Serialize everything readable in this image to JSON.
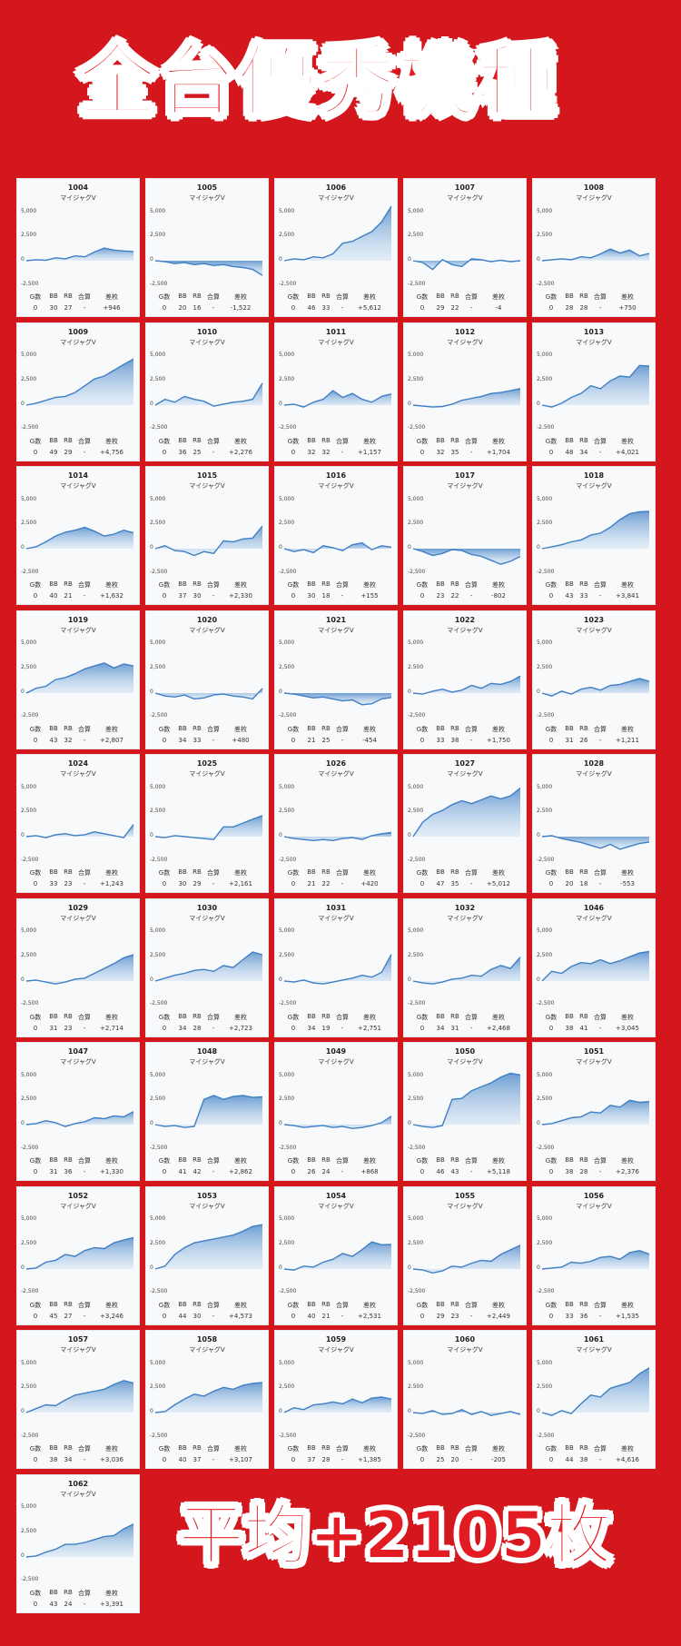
{
  "header": {
    "title": "全台優秀機種"
  },
  "footer": {
    "average": "平均+2105枚"
  },
  "labels": {
    "g": "G数",
    "bb": "BB",
    "rb": "RB",
    "total": "合算",
    "diff": "差枚",
    "y5000": "5,000",
    "y2500": "2,500",
    "y0": "0",
    "yneg": "-2,500"
  },
  "colors": {
    "background": "#d4161d",
    "line": "#3f7fc4",
    "fill": "#a9c9ea",
    "card": "#f7f9fb"
  },
  "machines": [
    {
      "id": "1004",
      "model": "マイジャグV",
      "g": "0",
      "bb": "30",
      "rb": "27",
      "total": "-",
      "diff": "+946",
      "end": 946,
      "shape": [
        0,
        100,
        50,
        300,
        200,
        500,
        400,
        900,
        1300,
        1100,
        1000,
        950
      ]
    },
    {
      "id": "1005",
      "model": "マイジャグV",
      "g": "0",
      "bb": "20",
      "rb": "16",
      "total": "-",
      "diff": "-1,522",
      "end": -1522,
      "shape": [
        0,
        -100,
        -300,
        -200,
        -400,
        -300,
        -500,
        -400,
        -600,
        -700,
        -900,
        -1522
      ]
    },
    {
      "id": "1006",
      "model": "マイジャグV",
      "g": "0",
      "bb": "46",
      "rb": "33",
      "total": "-",
      "diff": "+5,612",
      "end": 5612,
      "shape": [
        0,
        200,
        100,
        400,
        300,
        700,
        1800,
        2000,
        2500,
        3000,
        4000,
        5612
      ]
    },
    {
      "id": "1007",
      "model": "マイジャグV",
      "g": "0",
      "bb": "29",
      "rb": "22",
      "total": "-",
      "diff": "-4",
      "end": -4,
      "shape": [
        0,
        -200,
        -900,
        100,
        -400,
        -600,
        200,
        100,
        -100,
        50,
        -100,
        -4
      ]
    },
    {
      "id": "1008",
      "model": "マイジャグV",
      "g": "0",
      "bb": "28",
      "rb": "28",
      "total": "-",
      "diff": "+750",
      "end": 750,
      "shape": [
        0,
        100,
        200,
        100,
        400,
        300,
        700,
        1200,
        800,
        1100,
        500,
        750
      ]
    },
    {
      "id": "1009",
      "model": "マイジャグV",
      "g": "0",
      "bb": "49",
      "rb": "29",
      "total": "-",
      "diff": "+4,756",
      "end": 4756,
      "shape": [
        0,
        200,
        500,
        800,
        900,
        1300,
        2000,
        2700,
        3000,
        3600,
        4200,
        4756
      ]
    },
    {
      "id": "1010",
      "model": "マイジャグV",
      "g": "0",
      "bb": "36",
      "rb": "25",
      "total": "-",
      "diff": "+2,276",
      "end": 2276,
      "shape": [
        0,
        600,
        300,
        900,
        600,
        400,
        -100,
        100,
        300,
        400,
        600,
        2276
      ]
    },
    {
      "id": "1011",
      "model": "マイジャグV",
      "g": "0",
      "bb": "32",
      "rb": "32",
      "total": "-",
      "diff": "+1,157",
      "end": 1157,
      "shape": [
        0,
        100,
        -200,
        300,
        600,
        1500,
        800,
        1200,
        600,
        300,
        900,
        1157
      ]
    },
    {
      "id": "1012",
      "model": "マイジャグV",
      "g": "0",
      "bb": "32",
      "rb": "35",
      "total": "-",
      "diff": "+1,704",
      "end": 1704,
      "shape": [
        0,
        -100,
        -200,
        -150,
        100,
        500,
        700,
        900,
        1200,
        1300,
        1500,
        1704
      ]
    },
    {
      "id": "1013",
      "model": "マイジャグV",
      "g": "0",
      "bb": "48",
      "rb": "34",
      "total": "-",
      "diff": "+4,021",
      "end": 4021,
      "shape": [
        0,
        -200,
        200,
        800,
        1200,
        2000,
        1700,
        2500,
        3000,
        2900,
        4100,
        4021
      ]
    },
    {
      "id": "1014",
      "model": "マイジャグV",
      "g": "0",
      "bb": "40",
      "rb": "21",
      "total": "-",
      "diff": "+1,632",
      "end": 1632,
      "shape": [
        0,
        200,
        700,
        1300,
        1700,
        1900,
        2200,
        1800,
        1300,
        1500,
        1900,
        1632
      ]
    },
    {
      "id": "1015",
      "model": "マイジャグV",
      "g": "0",
      "bb": "37",
      "rb": "30",
      "total": "-",
      "diff": "+2,330",
      "end": 2330,
      "shape": [
        0,
        300,
        -200,
        -300,
        -700,
        -300,
        -500,
        800,
        700,
        1000,
        1100,
        2330
      ]
    },
    {
      "id": "1016",
      "model": "マイジャグV",
      "g": "0",
      "bb": "30",
      "rb": "18",
      "total": "-",
      "diff": "+155",
      "end": 155,
      "shape": [
        0,
        -300,
        -100,
        -400,
        300,
        100,
        -200,
        400,
        600,
        -100,
        300,
        155
      ]
    },
    {
      "id": "1017",
      "model": "マイジャグV",
      "g": "0",
      "bb": "23",
      "rb": "22",
      "total": "-",
      "diff": "-802",
      "end": -802,
      "shape": [
        0,
        -300,
        -700,
        -500,
        -100,
        -200,
        -600,
        -800,
        -1200,
        -1600,
        -1300,
        -802
      ]
    },
    {
      "id": "1018",
      "model": "マイジャグV",
      "g": "0",
      "bb": "43",
      "rb": "33",
      "total": "-",
      "diff": "+3,841",
      "end": 3841,
      "shape": [
        0,
        200,
        400,
        700,
        900,
        1400,
        1600,
        2200,
        3000,
        3600,
        3800,
        3841
      ]
    },
    {
      "id": "1019",
      "model": "マイジャグV",
      "g": "0",
      "bb": "43",
      "rb": "32",
      "total": "-",
      "diff": "+2,807",
      "end": 2807,
      "shape": [
        0,
        500,
        700,
        1400,
        1600,
        2000,
        2500,
        2800,
        3100,
        2600,
        3000,
        2807
      ]
    },
    {
      "id": "1020",
      "model": "マイジャグV",
      "g": "0",
      "bb": "34",
      "rb": "33",
      "total": "-",
      "diff": "+480",
      "end": 480,
      "shape": [
        0,
        -300,
        -400,
        -200,
        -600,
        -500,
        -200,
        -100,
        -300,
        -400,
        -600,
        480
      ]
    },
    {
      "id": "1021",
      "model": "マイジャグV",
      "g": "0",
      "bb": "21",
      "rb": "25",
      "total": "-",
      "diff": "-454",
      "end": -454,
      "shape": [
        0,
        -100,
        -300,
        -500,
        -400,
        -600,
        -800,
        -700,
        -1200,
        -1100,
        -600,
        -454
      ]
    },
    {
      "id": "1022",
      "model": "マイジャグV",
      "g": "0",
      "bb": "33",
      "rb": "38",
      "total": "-",
      "diff": "+1,750",
      "end": 1750,
      "shape": [
        0,
        -100,
        200,
        400,
        100,
        300,
        800,
        500,
        1000,
        900,
        1200,
        1750
      ]
    },
    {
      "id": "1023",
      "model": "マイジャグV",
      "g": "0",
      "bb": "31",
      "rb": "26",
      "total": "-",
      "diff": "+1,211",
      "end": 1211,
      "shape": [
        0,
        -300,
        200,
        -100,
        400,
        600,
        300,
        800,
        900,
        1200,
        1500,
        1211
      ]
    },
    {
      "id": "1024",
      "model": "マイジャグV",
      "g": "0",
      "bb": "33",
      "rb": "23",
      "total": "-",
      "diff": "+1,243",
      "end": 1243,
      "shape": [
        0,
        100,
        -100,
        200,
        300,
        100,
        200,
        500,
        300,
        100,
        -100,
        1243
      ]
    },
    {
      "id": "1025",
      "model": "マイジャグV",
      "g": "0",
      "bb": "30",
      "rb": "29",
      "total": "-",
      "diff": "+2,161",
      "end": 2161,
      "shape": [
        0,
        -100,
        100,
        0,
        -100,
        -200,
        -300,
        1000,
        1000,
        1400,
        1800,
        2161
      ]
    },
    {
      "id": "1026",
      "model": "マイジャグV",
      "g": "0",
      "bb": "21",
      "rb": "22",
      "total": "-",
      "diff": "+420",
      "end": 420,
      "shape": [
        0,
        -200,
        -300,
        -400,
        -300,
        -400,
        -200,
        -100,
        -300,
        100,
        300,
        420
      ]
    },
    {
      "id": "1027",
      "model": "マイジャグV",
      "g": "0",
      "bb": "47",
      "rb": "35",
      "total": "-",
      "diff": "+5,012",
      "end": 5012,
      "shape": [
        0,
        1500,
        2300,
        2700,
        3300,
        3700,
        3400,
        3800,
        4200,
        3900,
        4200,
        5012
      ]
    },
    {
      "id": "1028",
      "model": "マイジャグV",
      "g": "0",
      "bb": "20",
      "rb": "18",
      "total": "-",
      "diff": "-553",
      "end": -553,
      "shape": [
        0,
        100,
        -200,
        -400,
        -600,
        -900,
        -1200,
        -800,
        -1300,
        -1000,
        -700,
        -553
      ]
    },
    {
      "id": "1029",
      "model": "マイジャグV",
      "g": "0",
      "bb": "31",
      "rb": "23",
      "total": "-",
      "diff": "+2,714",
      "end": 2714,
      "shape": [
        0,
        100,
        -100,
        -300,
        -100,
        200,
        300,
        800,
        1300,
        1800,
        2400,
        2714
      ]
    },
    {
      "id": "1030",
      "model": "マイジャグV",
      "g": "0",
      "bb": "34",
      "rb": "28",
      "total": "-",
      "diff": "+2,723",
      "end": 2723,
      "shape": [
        0,
        300,
        600,
        800,
        1100,
        1200,
        1000,
        1600,
        1400,
        2200,
        3000,
        2723
      ]
    },
    {
      "id": "1031",
      "model": "マイジャグV",
      "g": "0",
      "bb": "34",
      "rb": "19",
      "total": "-",
      "diff": "+2,751",
      "end": 2751,
      "shape": [
        0,
        -100,
        100,
        -200,
        -300,
        -100,
        100,
        300,
        600,
        400,
        900,
        2751
      ]
    },
    {
      "id": "1032",
      "model": "マイジャグV",
      "g": "0",
      "bb": "34",
      "rb": "31",
      "total": "-",
      "diff": "+2,468",
      "end": 2468,
      "shape": [
        0,
        -200,
        -300,
        -100,
        200,
        300,
        600,
        500,
        1200,
        1600,
        1300,
        2468
      ]
    },
    {
      "id": "1046",
      "model": "マイジャグV",
      "g": "0",
      "bb": "38",
      "rb": "41",
      "total": "-",
      "diff": "+3,045",
      "end": 3045,
      "shape": [
        0,
        1000,
        800,
        1500,
        1900,
        1800,
        2200,
        1800,
        2100,
        2500,
        2900,
        3045
      ]
    },
    {
      "id": "1047",
      "model": "マイジャグV",
      "g": "0",
      "bb": "31",
      "rb": "36",
      "total": "-",
      "diff": "+1,330",
      "end": 1330,
      "shape": [
        0,
        100,
        400,
        200,
        -200,
        100,
        300,
        700,
        600,
        900,
        800,
        1330
      ]
    },
    {
      "id": "1048",
      "model": "マイジャグV",
      "g": "0",
      "bb": "41",
      "rb": "42",
      "total": "-",
      "diff": "+2,862",
      "end": 2862,
      "shape": [
        0,
        -200,
        -100,
        -300,
        -200,
        2600,
        3000,
        2600,
        2900,
        3000,
        2800,
        2862
      ]
    },
    {
      "id": "1049",
      "model": "マイジャグV",
      "g": "0",
      "bb": "26",
      "rb": "24",
      "total": "-",
      "diff": "+868",
      "end": 868,
      "shape": [
        0,
        -100,
        -300,
        -200,
        -100,
        -300,
        -200,
        -400,
        -300,
        -100,
        200,
        868
      ]
    },
    {
      "id": "1050",
      "model": "マイジャグV",
      "g": "0",
      "bb": "46",
      "rb": "43",
      "total": "-",
      "diff": "+5,118",
      "end": 5118,
      "shape": [
        0,
        -200,
        -300,
        -100,
        2600,
        2700,
        3500,
        3900,
        4300,
        4900,
        5300,
        5118
      ]
    },
    {
      "id": "1051",
      "model": "マイジャグV",
      "g": "0",
      "bb": "38",
      "rb": "28",
      "total": "-",
      "diff": "+2,376",
      "end": 2376,
      "shape": [
        0,
        100,
        400,
        700,
        800,
        1300,
        1200,
        2000,
        1800,
        2500,
        2300,
        2376
      ]
    },
    {
      "id": "1052",
      "model": "マイジャグV",
      "g": "0",
      "bb": "45",
      "rb": "27",
      "total": "-",
      "diff": "+3,246",
      "end": 3246,
      "shape": [
        0,
        100,
        700,
        900,
        1500,
        1300,
        1900,
        2200,
        2100,
        2700,
        3000,
        3246
      ]
    },
    {
      "id": "1053",
      "model": "マイジャグV",
      "g": "0",
      "bb": "44",
      "rb": "30",
      "total": "-",
      "diff": "+4,573",
      "end": 4573,
      "shape": [
        0,
        300,
        1500,
        2200,
        2700,
        2900,
        3100,
        3300,
        3500,
        3900,
        4400,
        4573
      ]
    },
    {
      "id": "1054",
      "model": "マイジャグV",
      "g": "0",
      "bb": "40",
      "rb": "21",
      "total": "-",
      "diff": "+2,531",
      "end": 2531,
      "shape": [
        0,
        -100,
        300,
        200,
        700,
        1000,
        1600,
        1300,
        2000,
        2800,
        2500,
        2531
      ]
    },
    {
      "id": "1055",
      "model": "マイジャグV",
      "g": "0",
      "bb": "29",
      "rb": "23",
      "total": "-",
      "diff": "+2,449",
      "end": 2449,
      "shape": [
        0,
        -100,
        -400,
        -200,
        300,
        200,
        600,
        900,
        800,
        1500,
        2000,
        2449
      ]
    },
    {
      "id": "1056",
      "model": "マイジャグV",
      "g": "0",
      "bb": "33",
      "rb": "36",
      "total": "-",
      "diff": "+1,535",
      "end": 1535,
      "shape": [
        0,
        100,
        200,
        700,
        600,
        800,
        1200,
        1300,
        1000,
        1700,
        1900,
        1535
      ]
    },
    {
      "id": "1057",
      "model": "マイジャグV",
      "g": "0",
      "bb": "38",
      "rb": "34",
      "total": "-",
      "diff": "+3,036",
      "end": 3036,
      "shape": [
        0,
        400,
        800,
        700,
        1300,
        1800,
        2000,
        2200,
        2400,
        2900,
        3300,
        3036
      ]
    },
    {
      "id": "1058",
      "model": "マイジャグV",
      "g": "0",
      "bb": "40",
      "rb": "37",
      "total": "-",
      "diff": "+3,107",
      "end": 3107,
      "shape": [
        0,
        100,
        800,
        1400,
        1900,
        1700,
        2200,
        2600,
        2400,
        2800,
        3000,
        3107
      ]
    },
    {
      "id": "1059",
      "model": "マイジャグV",
      "g": "0",
      "bb": "37",
      "rb": "28",
      "total": "-",
      "diff": "+1,385",
      "end": 1385,
      "shape": [
        0,
        500,
        300,
        800,
        900,
        1100,
        900,
        1400,
        1000,
        1500,
        1600,
        1385
      ]
    },
    {
      "id": "1060",
      "model": "マイジャグV",
      "g": "0",
      "bb": "25",
      "rb": "20",
      "total": "-",
      "diff": "-205",
      "end": -205,
      "shape": [
        0,
        -100,
        200,
        -200,
        -100,
        300,
        -200,
        100,
        -300,
        -100,
        100,
        -205
      ]
    },
    {
      "id": "1061",
      "model": "マイジャグV",
      "g": "0",
      "bb": "44",
      "rb": "38",
      "total": "-",
      "diff": "+4,616",
      "end": 4616,
      "shape": [
        0,
        -300,
        200,
        -100,
        900,
        1800,
        1600,
        2500,
        2800,
        3100,
        4000,
        4616
      ]
    },
    {
      "id": "1062",
      "model": "マイジャグV",
      "g": "0",
      "bb": "43",
      "rb": "24",
      "total": "-",
      "diff": "+3,391",
      "end": 3391,
      "shape": [
        0,
        100,
        500,
        800,
        1300,
        1300,
        1500,
        1800,
        2100,
        2200,
        2900,
        3391
      ]
    }
  ]
}
